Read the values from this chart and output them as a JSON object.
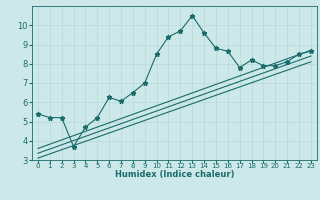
{
  "xlabel": "Humidex (Indice chaleur)",
  "bg_color": "#cce8e8",
  "grid_color": "#b8d8d8",
  "line_color": "#1a6b6b",
  "xlim": [
    -0.5,
    23.5
  ],
  "ylim": [
    3,
    11
  ],
  "yticks": [
    3,
    4,
    5,
    6,
    7,
    8,
    9,
    10
  ],
  "xticks": [
    0,
    1,
    2,
    3,
    4,
    5,
    6,
    7,
    8,
    9,
    10,
    11,
    12,
    13,
    14,
    15,
    16,
    17,
    18,
    19,
    20,
    21,
    22,
    23
  ],
  "main_line_x": [
    0,
    1,
    2,
    3,
    4,
    5,
    6,
    7,
    8,
    9,
    10,
    11,
    12,
    13,
    14,
    15,
    16,
    17,
    18,
    19,
    20,
    21,
    22,
    23
  ],
  "main_line_y": [
    5.4,
    5.2,
    5.2,
    3.7,
    4.7,
    5.2,
    6.25,
    6.05,
    6.5,
    7.0,
    8.5,
    9.4,
    9.7,
    10.5,
    9.6,
    8.8,
    8.65,
    7.8,
    8.2,
    7.9,
    7.9,
    8.1,
    8.5,
    8.65
  ],
  "line2_x": [
    0,
    23
  ],
  "line2_y": [
    3.6,
    8.7
  ],
  "line3_x": [
    0,
    23
  ],
  "line3_y": [
    3.35,
    8.4
  ],
  "line4_x": [
    0,
    23
  ],
  "line4_y": [
    3.1,
    8.1
  ],
  "xlabel_fontsize": 6,
  "tick_fontsize_x": 5,
  "tick_fontsize_y": 6
}
